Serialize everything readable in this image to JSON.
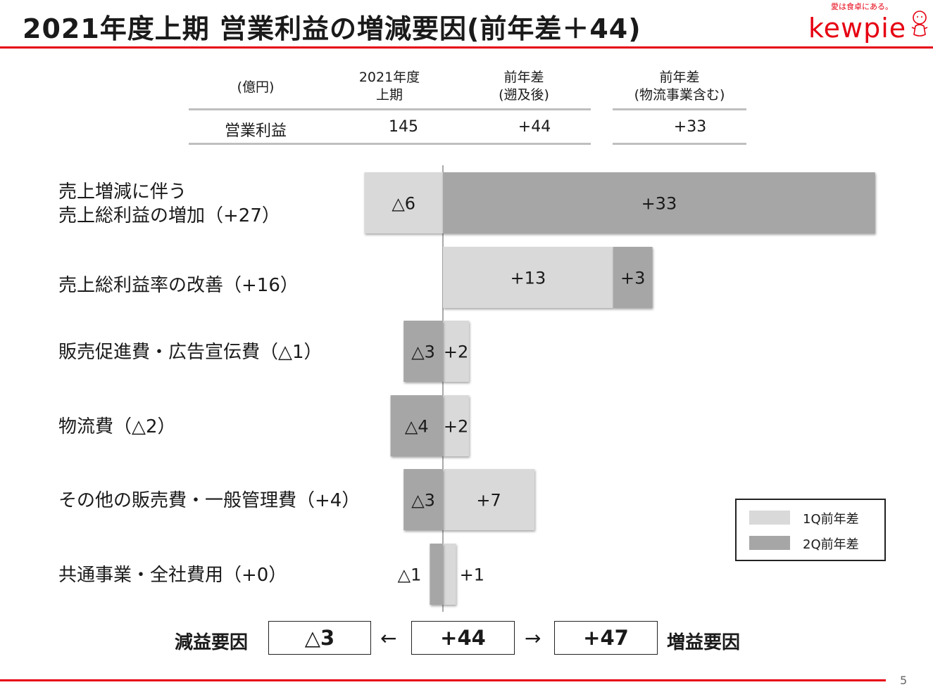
{
  "header": {
    "title": "2021年度上期 営業利益の増減要因(前年差＋44)",
    "brand_tagline": "愛は食卓にある。",
    "brand_name": "kewpie",
    "accent_color": "#e60012"
  },
  "summary_table": {
    "unit": "(億円)",
    "columns": [
      [
        "2021年度",
        "上期"
      ],
      [
        "前年差",
        "(遡及後)"
      ],
      [
        "前年差",
        "(物流事業含む)"
      ]
    ],
    "row_label": "営業利益",
    "values": [
      "145",
      "+44",
      "+33"
    ]
  },
  "chart_data": {
    "type": "bar",
    "orientation": "horizontal",
    "stacking": "diverging",
    "categories": [
      [
        "売上増減に伴う",
        "売上総利益の増加（+27）"
      ],
      [
        "売上総利益率の改善（+16）"
      ],
      [
        "販売促進費・広告宣伝費（△1）"
      ],
      [
        "物流費（△2）"
      ],
      [
        "その他の販売費・一般管理費（+4）"
      ],
      [
        "共通事業・全社費用（+0）"
      ]
    ],
    "series": [
      {
        "name": "1Q前年差",
        "color": "#d9d9d9",
        "values": [
          -6,
          13,
          2,
          2,
          7,
          1
        ],
        "labels": [
          "△6",
          "+13",
          "+2",
          "+2",
          "+7",
          "+1"
        ]
      },
      {
        "name": "2Q前年差",
        "color": "#a6a6a6",
        "values": [
          33,
          3,
          -3,
          -4,
          -3,
          -1
        ],
        "labels": [
          "+33",
          "+3",
          "△3",
          "△4",
          "△3",
          "△1"
        ]
      }
    ],
    "negative_first": [
      true,
      false,
      true,
      true,
      true,
      true
    ],
    "legend_position": "bottom-right",
    "grid": false
  },
  "summary": {
    "decrease_label": "減益要因",
    "decrease_value": "△3",
    "arrow_left": "←",
    "total_value": "+44",
    "arrow_right": "→",
    "increase_value": "+47",
    "increase_label": "増益要因"
  },
  "page_number": "5"
}
